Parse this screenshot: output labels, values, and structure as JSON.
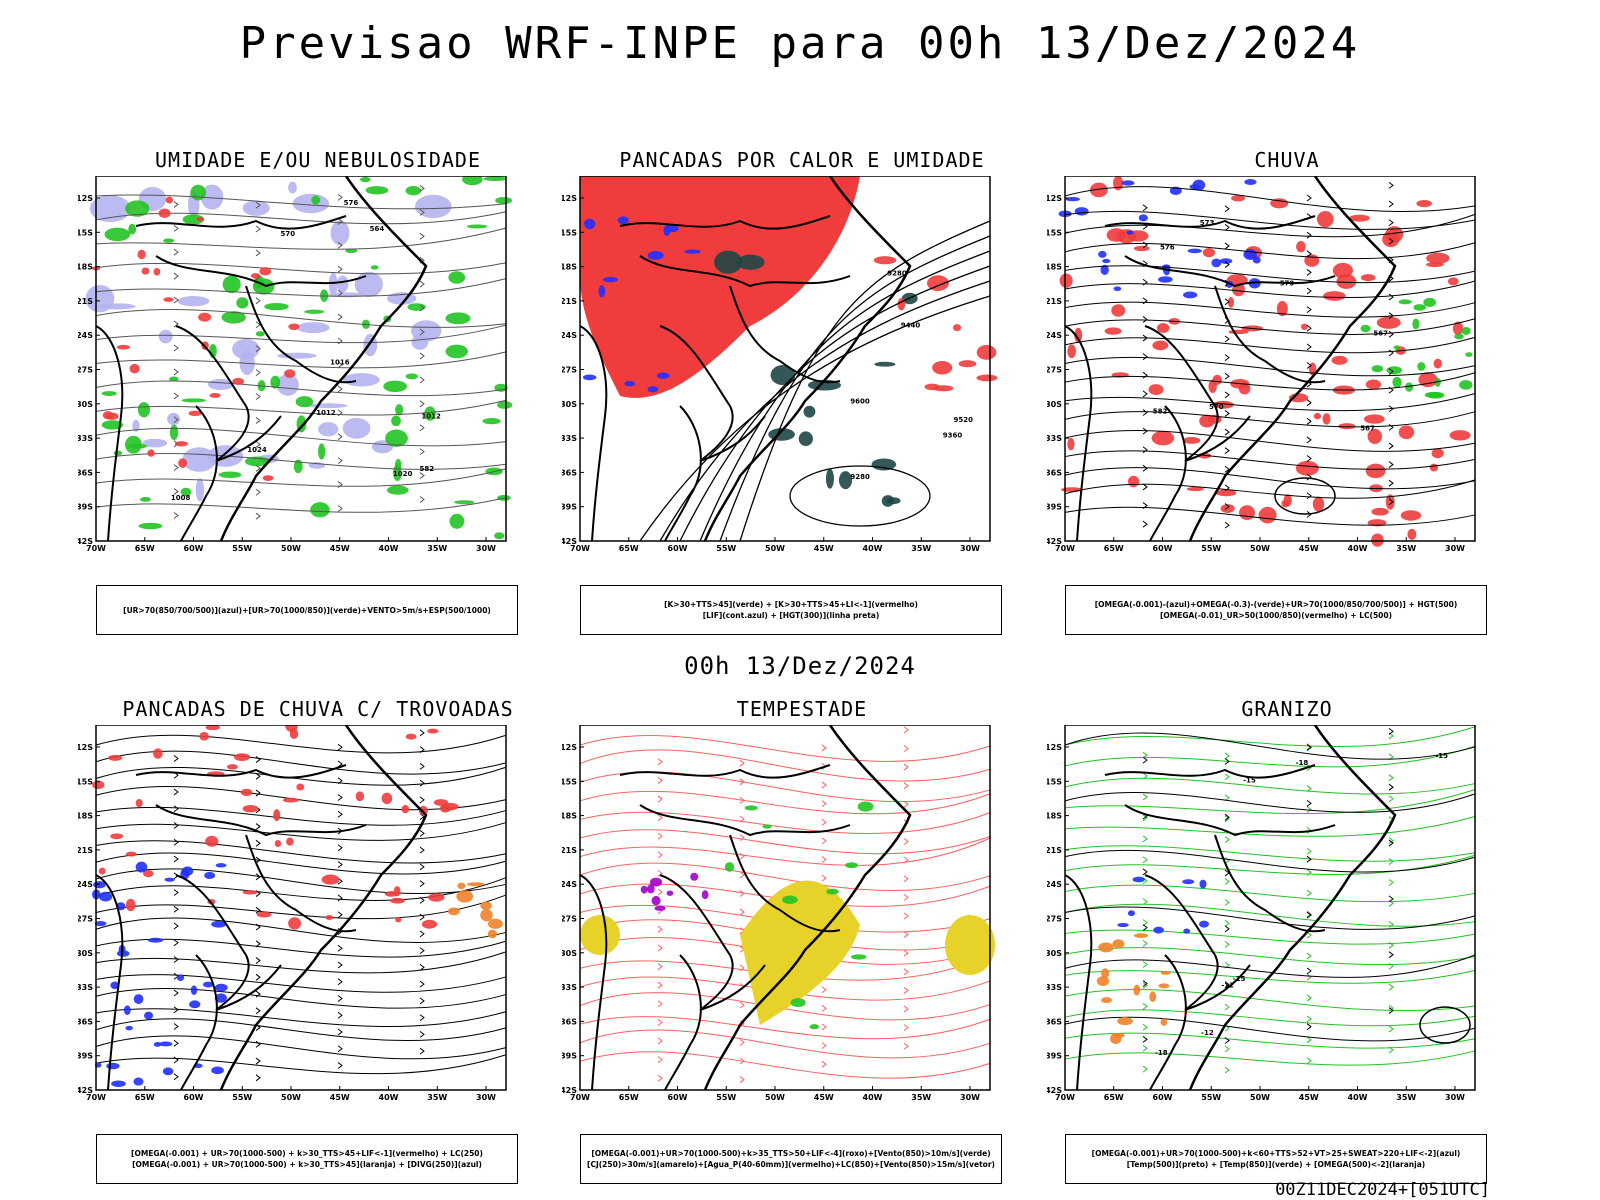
{
  "title": "Previsao WRF-INPE  para 00h 13/Dez/2024",
  "mid_date": "00h 13/Dez/2024",
  "footer": "00Z11DEC2024+[051UTC]",
  "axes": {
    "lat_labels": [
      "12S",
      "15S",
      "18S",
      "21S",
      "24S",
      "27S",
      "30S",
      "33S",
      "36S",
      "39S",
      "42S"
    ],
    "lon_labels": [
      "70W",
      "65W",
      "60W",
      "55W",
      "50W",
      "45W",
      "40W",
      "35W",
      "30W"
    ]
  },
  "colors": {
    "red": "#f03c3c",
    "green": "#22c322",
    "blue": "#2030ff",
    "lavender": "#b4b4f0",
    "darkteal": "#1e4646",
    "yellow": "#e6d228",
    "orange": "#f08228",
    "purple": "#a000c8"
  },
  "panels": [
    {
      "title": "UMIDADE E/OU NEBULOSIDADE",
      "legend": [
        "[UR>70(850/700/500)](azul)+[UR>70(1000/850)](verde)+VENTO>5m/s+ESP(500/1000)"
      ],
      "contour_labels": [
        "1008",
        "1012",
        "1016",
        "1012",
        "570",
        "576",
        "582",
        "564",
        "1020",
        "1024"
      ]
    },
    {
      "title": "PANCADAS POR CALOR E UMIDADE",
      "legend": [
        "[K>30+TTS>45](verde) + [K>30+TTS>45+LI<-1](vermelho)",
        "[LIF](cont.azul) + [HGT(300)](linha preta)"
      ],
      "contour_labels": [
        "9600",
        "9520",
        "9440",
        "9360",
        "9280",
        "9280"
      ]
    },
    {
      "title": "CHUVA",
      "legend": [
        "[OMEGA(-0.001)-(azul)+OMEGA(-0.3)-(verde)+UR>70(1000/850/700/500)] + HGT(500)",
        "[OMEGA(-0.01)_UR>50(1000/850)(vermelho) + LC(500)"
      ],
      "contour_labels": [
        "582",
        "579",
        "576",
        "573",
        "570",
        "567",
        "567"
      ]
    },
    {
      "title": "PANCADAS DE CHUVA C/ TROVOADAS",
      "legend": [
        "[OMEGA(-0.001) + UR>70(1000-500) + k>30_TTS>45+LIF<-1](vermelho) + LC(250)",
        "[OMEGA(-0.001) + UR>70(1000-500) + k>30_TTS>45](laranja) + [DIVG(250)](azul)"
      ],
      "contour_labels": []
    },
    {
      "title": "TEMPESTADE",
      "legend": [
        "[OMEGA(-0.001)+UR>70(1000-500)+k>35_TTS>50+LIF<-4](roxo)+[Vento(850)>10m/s](verde)",
        "[CJ(250)>30m/s](amarelo)+[Agua_P(40-60mm)](vermelho)+LC(850)+[Vento(850)>15m/s](vetor)"
      ],
      "contour_labels": []
    },
    {
      "title": "GRANIZO",
      "legend": [
        "[OMEGA(-0.001)+UR>70(1000-500)+k<60+TTS>52+VT>25+SWEAT>220+LIF<-2](azul)",
        "[Temp(500)](preto) + [Temp(850)](verde) + [OMEGA(500)<-2](laranja)"
      ],
      "contour_labels": [
        "-12",
        "-15",
        "-18",
        "-18",
        "-15",
        "-12",
        "-15"
      ]
    }
  ]
}
